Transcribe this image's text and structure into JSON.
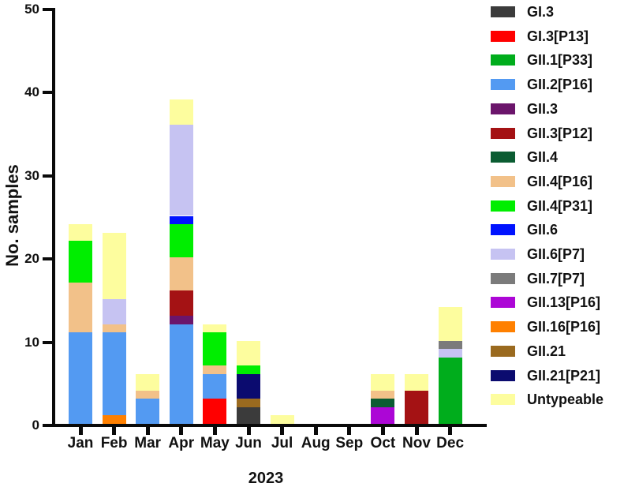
{
  "chart_data": {
    "type": "bar",
    "subtype": "stacked-vertical",
    "title": "",
    "xlabel": "2023",
    "ylabel": "No. samples",
    "ylim": [
      0,
      50
    ],
    "yticks": [
      0,
      10,
      20,
      30,
      40,
      50
    ],
    "grid": false,
    "legend_position": "right",
    "categories": [
      "Jan",
      "Feb",
      "Mar",
      "Apr",
      "May",
      "Jun",
      "Jul",
      "Aug",
      "Sep",
      "Oct",
      "Nov",
      "Dec"
    ],
    "legend": [
      {
        "label": "GI.3",
        "color": "#3B3B3B"
      },
      {
        "label": "GI.3[P13]",
        "color": "#FF0000"
      },
      {
        "label": "GII.1[P33]",
        "color": "#00AD1C"
      },
      {
        "label": "GII.2[P16]",
        "color": "#539AF2"
      },
      {
        "label": "GII.3",
        "color": "#6B156B"
      },
      {
        "label": "GII.3[P12]",
        "color": "#A41214"
      },
      {
        "label": "GII.4",
        "color": "#0B5C32"
      },
      {
        "label": "GII.4[P16]",
        "color": "#F2C189"
      },
      {
        "label": "GII.4[P31]",
        "color": "#00EE00"
      },
      {
        "label": "GII.6",
        "color": "#0013FF"
      },
      {
        "label": "GII.6[P7]",
        "color": "#C6C3F2"
      },
      {
        "label": "GII.7[P7]",
        "color": "#7B7B7B"
      },
      {
        "label": "GII.13[P16]",
        "color": "#AC06D6"
      },
      {
        "label": "GII.16[P16]",
        "color": "#FF8000"
      },
      {
        "label": "GII.21",
        "color": "#9A6A1F"
      },
      {
        "label": "GII.21[P21]",
        "color": "#0B0B6F"
      },
      {
        "label": "Untypeable",
        "color": "#FDFD9E"
      }
    ],
    "bars": [
      {
        "month": "Jan",
        "total": 24,
        "segments": [
          {
            "genotype": "GII.2[P16]",
            "value": 11
          },
          {
            "genotype": "GII.4[P16]",
            "value": 6
          },
          {
            "genotype": "GII.4[P31]",
            "value": 5
          },
          {
            "genotype": "Untypeable",
            "value": 2
          }
        ]
      },
      {
        "month": "Feb",
        "total": 23,
        "segments": [
          {
            "genotype": "GII.16[P16]",
            "value": 1
          },
          {
            "genotype": "GII.2[P16]",
            "value": 10
          },
          {
            "genotype": "GII.4[P16]",
            "value": 1
          },
          {
            "genotype": "GII.6[P7]",
            "value": 3
          },
          {
            "genotype": "Untypeable",
            "value": 8
          }
        ]
      },
      {
        "month": "Mar",
        "total": 6,
        "segments": [
          {
            "genotype": "GII.2[P16]",
            "value": 3
          },
          {
            "genotype": "GII.4[P16]",
            "value": 1
          },
          {
            "genotype": "Untypeable",
            "value": 2
          }
        ]
      },
      {
        "month": "Apr",
        "total": 39,
        "segments": [
          {
            "genotype": "GII.2[P16]",
            "value": 12
          },
          {
            "genotype": "GII.3",
            "value": 1
          },
          {
            "genotype": "GII.3[P12]",
            "value": 3
          },
          {
            "genotype": "GII.4[P16]",
            "value": 4
          },
          {
            "genotype": "GII.4[P31]",
            "value": 4
          },
          {
            "genotype": "GII.6",
            "value": 1
          },
          {
            "genotype": "GII.6[P7]",
            "value": 11
          },
          {
            "genotype": "Untypeable",
            "value": 3
          }
        ]
      },
      {
        "month": "May",
        "total": 12,
        "segments": [
          {
            "genotype": "GI.3[P13]",
            "value": 3
          },
          {
            "genotype": "GII.2[P16]",
            "value": 3
          },
          {
            "genotype": "GII.4[P16]",
            "value": 1
          },
          {
            "genotype": "GII.4[P31]",
            "value": 4
          },
          {
            "genotype": "Untypeable",
            "value": 1
          }
        ]
      },
      {
        "month": "Jun",
        "total": 10,
        "segments": [
          {
            "genotype": "GI.3",
            "value": 2
          },
          {
            "genotype": "GII.21",
            "value": 1
          },
          {
            "genotype": "GII.21[P21]",
            "value": 3
          },
          {
            "genotype": "GII.4[P31]",
            "value": 1
          },
          {
            "genotype": "Untypeable",
            "value": 3
          }
        ]
      },
      {
        "month": "Jul",
        "total": 1,
        "segments": [
          {
            "genotype": "Untypeable",
            "value": 1
          }
        ]
      },
      {
        "month": "Aug",
        "total": 0,
        "segments": []
      },
      {
        "month": "Sep",
        "total": 0,
        "segments": []
      },
      {
        "month": "Oct",
        "total": 6,
        "segments": [
          {
            "genotype": "GII.13[P16]",
            "value": 2
          },
          {
            "genotype": "GII.4",
            "value": 1
          },
          {
            "genotype": "GII.4[P16]",
            "value": 1
          },
          {
            "genotype": "Untypeable",
            "value": 2
          }
        ]
      },
      {
        "month": "Nov",
        "total": 6,
        "segments": [
          {
            "genotype": "GII.3[P12]",
            "value": 4
          },
          {
            "genotype": "Untypeable",
            "value": 2
          }
        ]
      },
      {
        "month": "Dec",
        "total": 14,
        "segments": [
          {
            "genotype": "GII.1[P33]",
            "value": 8
          },
          {
            "genotype": "GII.6[P7]",
            "value": 1
          },
          {
            "genotype": "GII.7[P7]",
            "value": 1
          },
          {
            "genotype": "Untypeable",
            "value": 4
          }
        ]
      }
    ]
  }
}
